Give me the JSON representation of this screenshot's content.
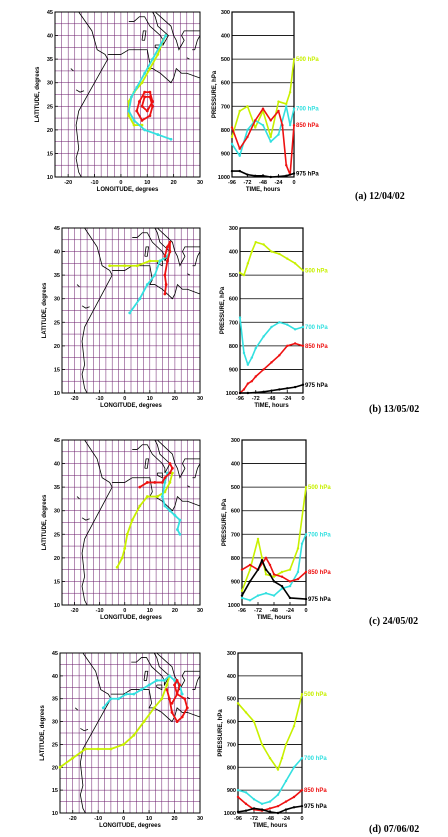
{
  "colors": {
    "500hPa": "#c8f000",
    "700hPa": "#33e0e0",
    "850hPa": "#ee1111",
    "975hPa": "#000000",
    "grid": "#6a1a6a",
    "coast": "#000000"
  },
  "map_axes": {
    "xlabel": "LONGITUDE, degrees",
    "ylabel": "LATITUDE, degrees",
    "xticks": [
      -20,
      -10,
      0,
      10,
      20,
      30
    ],
    "yticks": [
      10,
      15,
      20,
      25,
      30,
      35,
      40,
      45
    ],
    "xlim": [
      -25,
      30
    ],
    "ylim": [
      10,
      45
    ]
  },
  "pressure_axes": {
    "xlabel": "TIME, hours",
    "ylabel": "PRESSURE, hPa",
    "xticks": [
      -96,
      -72,
      -48,
      -24,
      0
    ],
    "xticklabels": [
      "-96",
      "-72",
      "-48",
      "-24",
      "0"
    ],
    "yticks": [
      300,
      400,
      500,
      600,
      700,
      800,
      900,
      1000
    ],
    "yticklabels": [
      "300",
      "400",
      "500",
      "600",
      "700",
      "800",
      "900",
      "1000"
    ],
    "xlim": [
      -96,
      0
    ],
    "ylim": [
      300,
      1000
    ]
  },
  "chart_data": [
    {
      "type": "line",
      "caption": "(a) 12/04/02",
      "map": {
        "series": [
          {
            "level": "500hPa",
            "lon": [
              17,
              16,
              14,
              11,
              8,
              5,
              3,
              3,
              5,
              8
            ],
            "lat": [
              40,
              39,
              36,
              33,
              30,
              28,
              26,
              23,
              21,
              21
            ]
          },
          {
            "level": "700hPa",
            "lon": [
              17,
              15,
              12,
              9,
              6,
              4,
              3,
              5,
              9,
              14,
              19
            ],
            "lat": [
              40,
              38,
              35,
              32,
              29,
              27,
              24,
              22,
              20,
              19,
              18
            ]
          },
          {
            "level": "850hPa",
            "lon": [
              9,
              11,
              12,
              11,
              8,
              6,
              7,
              9,
              11,
              12,
              10,
              8,
              9
            ],
            "lat": [
              27,
              27,
              25,
              23,
              22,
              24,
              26,
              28,
              28,
              26,
              24,
              25,
              27
            ]
          }
        ]
      },
      "pressure": {
        "label_500": "500 hPa",
        "label_700": "700 hPa",
        "label_850": "850 hPa",
        "label_975": "975 hPa",
        "series": [
          {
            "level": "500hPa",
            "t": [
              -96,
              -84,
              -72,
              -60,
              -48,
              -36,
              -24,
              -12,
              -6,
              0
            ],
            "p": [
              830,
              720,
              700,
              790,
              720,
              830,
              680,
              690,
              640,
              500
            ]
          },
          {
            "level": "700hPa",
            "t": [
              -96,
              -84,
              -72,
              -60,
              -48,
              -36,
              -24,
              -12,
              -6,
              0
            ],
            "p": [
              860,
              910,
              800,
              760,
              780,
              850,
              820,
              700,
              780,
              710
            ]
          },
          {
            "level": "850hPa",
            "t": [
              -96,
              -84,
              -72,
              -60,
              -48,
              -36,
              -24,
              -18,
              -12,
              -6,
              0
            ],
            "p": [
              790,
              880,
              830,
              760,
              710,
              760,
              720,
              780,
              950,
              990,
              780
            ]
          },
          {
            "level": "975hPa",
            "t": [
              -96,
              -84,
              -72,
              -60,
              -48,
              -36,
              -24,
              -12,
              0
            ],
            "p": [
              975,
              975,
              990,
              995,
              995,
              1000,
              998,
              995,
              985
            ]
          }
        ]
      }
    },
    {
      "type": "line",
      "caption": "(b) 13/05/02",
      "map": {
        "series": [
          {
            "level": "500hPa",
            "lon": [
              -6,
              0,
              5,
              10,
              14,
              17,
              18
            ],
            "lat": [
              37,
              37,
              37,
              38,
              38,
              39,
              40
            ]
          },
          {
            "level": "700hPa",
            "lon": [
              2,
              6,
              9,
              12,
              14,
              17,
              18
            ],
            "lat": [
              27,
              30,
              33,
              35,
              38,
              39,
              40
            ]
          },
          {
            "level": "850hPa",
            "lon": [
              16,
              16.5,
              16,
              17,
              18,
              18,
              17,
              16
            ],
            "lat": [
              31,
              33,
              35,
              38,
              40,
              42,
              41,
              39
            ]
          }
        ]
      },
      "pressure": {
        "label_500": "500 hPa",
        "label_700": "700 hPa",
        "label_850": "850 hPa",
        "label_975": "975 hPa",
        "series": [
          {
            "level": "500hPa",
            "t": [
              -96,
              -90,
              -84,
              -78,
              -72,
              -60,
              -48,
              -36,
              -24,
              -12,
              0
            ],
            "p": [
              490,
              500,
              450,
              400,
              360,
              370,
              400,
              410,
              430,
              450,
              480
            ]
          },
          {
            "level": "700hPa",
            "t": [
              -96,
              -90,
              -84,
              -78,
              -72,
              -60,
              -48,
              -36,
              -24,
              -12,
              0
            ],
            "p": [
              680,
              830,
              880,
              850,
              810,
              760,
              720,
              700,
              710,
              730,
              720
            ]
          },
          {
            "level": "850hPa",
            "t": [
              -96,
              -90,
              -84,
              -78,
              -72,
              -60,
              -48,
              -36,
              -24,
              -12,
              0
            ],
            "p": [
              1000,
              985,
              960,
              950,
              930,
              900,
              870,
              840,
              800,
              790,
              800
            ]
          },
          {
            "level": "975hPa",
            "t": [
              -96,
              -84,
              -72,
              -60,
              -48,
              -36,
              -24,
              -12,
              0
            ],
            "p": [
              1000,
              1000,
              998,
              995,
              990,
              985,
              980,
              975,
              965
            ]
          }
        ]
      }
    },
    {
      "type": "line",
      "caption": "(c) 24/05/02",
      "map": {
        "series": [
          {
            "level": "500hPa",
            "lon": [
              -3,
              -1,
              0,
              1,
              3,
              6,
              9,
              13,
              16,
              18,
              19
            ],
            "lat": [
              18,
              20,
              22,
              25,
              28,
              31,
              33,
              33,
              34,
              36,
              38
            ]
          },
          {
            "level": "700hPa",
            "lon": [
              17,
              16,
              15,
              16,
              18,
              20,
              22,
              21,
              22
            ],
            "lat": [
              38,
              36,
              33,
              31,
              30,
              29,
              28,
              26,
              25
            ]
          },
          {
            "level": "850hPa",
            "lon": [
              6,
              9,
              12,
              15,
              16,
              18,
              19,
              18
            ],
            "lat": [
              35,
              36,
              36,
              36,
              37,
              38,
              39,
              40
            ]
          }
        ]
      },
      "pressure": {
        "label_500": "500 hPa",
        "label_700": "700 hPa",
        "label_850": "850 hPa",
        "label_975": "975 hPa",
        "series": [
          {
            "level": "500hPa",
            "t": [
              -96,
              -84,
              -72,
              -66,
              -60,
              -48,
              -36,
              -24,
              -12,
              0
            ],
            "p": [
              940,
              850,
              720,
              800,
              870,
              880,
              860,
              850,
              760,
              500
            ]
          },
          {
            "level": "700hPa",
            "t": [
              -96,
              -84,
              -72,
              -60,
              -48,
              -36,
              -24,
              -12,
              -6,
              0
            ],
            "p": [
              970,
              980,
              960,
              950,
              960,
              930,
              920,
              860,
              740,
              700
            ]
          },
          {
            "level": "850hPa",
            "t": [
              -96,
              -84,
              -72,
              -60,
              -54,
              -48,
              -36,
              -24,
              -12,
              0
            ],
            "p": [
              850,
              830,
              850,
              800,
              830,
              870,
              880,
              900,
              890,
              860
            ]
          },
          {
            "level": "975hPa",
            "t": [
              -96,
              -84,
              -72,
              -66,
              -60,
              -54,
              -48,
              -36,
              -24,
              0
            ],
            "p": [
              960,
              900,
              850,
              810,
              850,
              870,
              900,
              920,
              970,
              975
            ]
          }
        ]
      }
    },
    {
      "type": "line",
      "caption": "(d) 07/06/02",
      "map": {
        "series": [
          {
            "level": "500hPa",
            "lon": [
              -25,
              -20,
              -15,
              -10,
              -5,
              0,
              4,
              8,
              12,
              15,
              17,
              18
            ],
            "lat": [
              20,
              22,
              24,
              24,
              24,
              25,
              27,
              30,
              33,
              35,
              38,
              40
            ]
          },
          {
            "level": "700hPa",
            "lon": [
              -8,
              -5,
              -2,
              1,
              4,
              7,
              10,
              13,
              16,
              18,
              20,
              22,
              23
            ],
            "lat": [
              33,
              35,
              35,
              36,
              36,
              37,
              38,
              39,
              39,
              40,
              39,
              38,
              36
            ]
          },
          {
            "level": "850hPa",
            "lon": [
              17,
              18,
              19,
              21,
              23,
              25,
              24,
              21,
              20,
              21,
              22,
              21,
              19
            ],
            "lat": [
              37,
              35,
              32,
              30,
              31,
              33,
              35,
              36,
              38,
              39,
              38,
              36,
              34
            ]
          }
        ]
      },
      "pressure": {
        "label_500": "500 hPa",
        "label_700": "700 hPa",
        "label_850": "850 hPa",
        "label_975": "975 hPa",
        "series": [
          {
            "level": "500hPa",
            "t": [
              -96,
              -84,
              -72,
              -60,
              -48,
              -36,
              -30,
              -24,
              -12,
              0
            ],
            "p": [
              520,
              560,
              600,
              700,
              760,
              810,
              760,
              700,
              620,
              480
            ]
          },
          {
            "level": "700hPa",
            "t": [
              -96,
              -84,
              -72,
              -60,
              -48,
              -36,
              -24,
              -12,
              0
            ],
            "p": [
              900,
              910,
              940,
              960,
              950,
              920,
              860,
              800,
              760
            ]
          },
          {
            "level": "850hPa",
            "t": [
              -96,
              -84,
              -72,
              -60,
              -48,
              -36,
              -24,
              -12,
              0
            ],
            "p": [
              930,
              960,
              985,
              990,
              980,
              970,
              950,
              930,
              900
            ]
          },
          {
            "level": "975hPa",
            "t": [
              -96,
              -84,
              -72,
              -60,
              -48,
              -36,
              -24,
              -12,
              0
            ],
            "p": [
              995,
              990,
              980,
              985,
              995,
              1000,
              985,
              975,
              970
            ]
          }
        ]
      }
    }
  ]
}
